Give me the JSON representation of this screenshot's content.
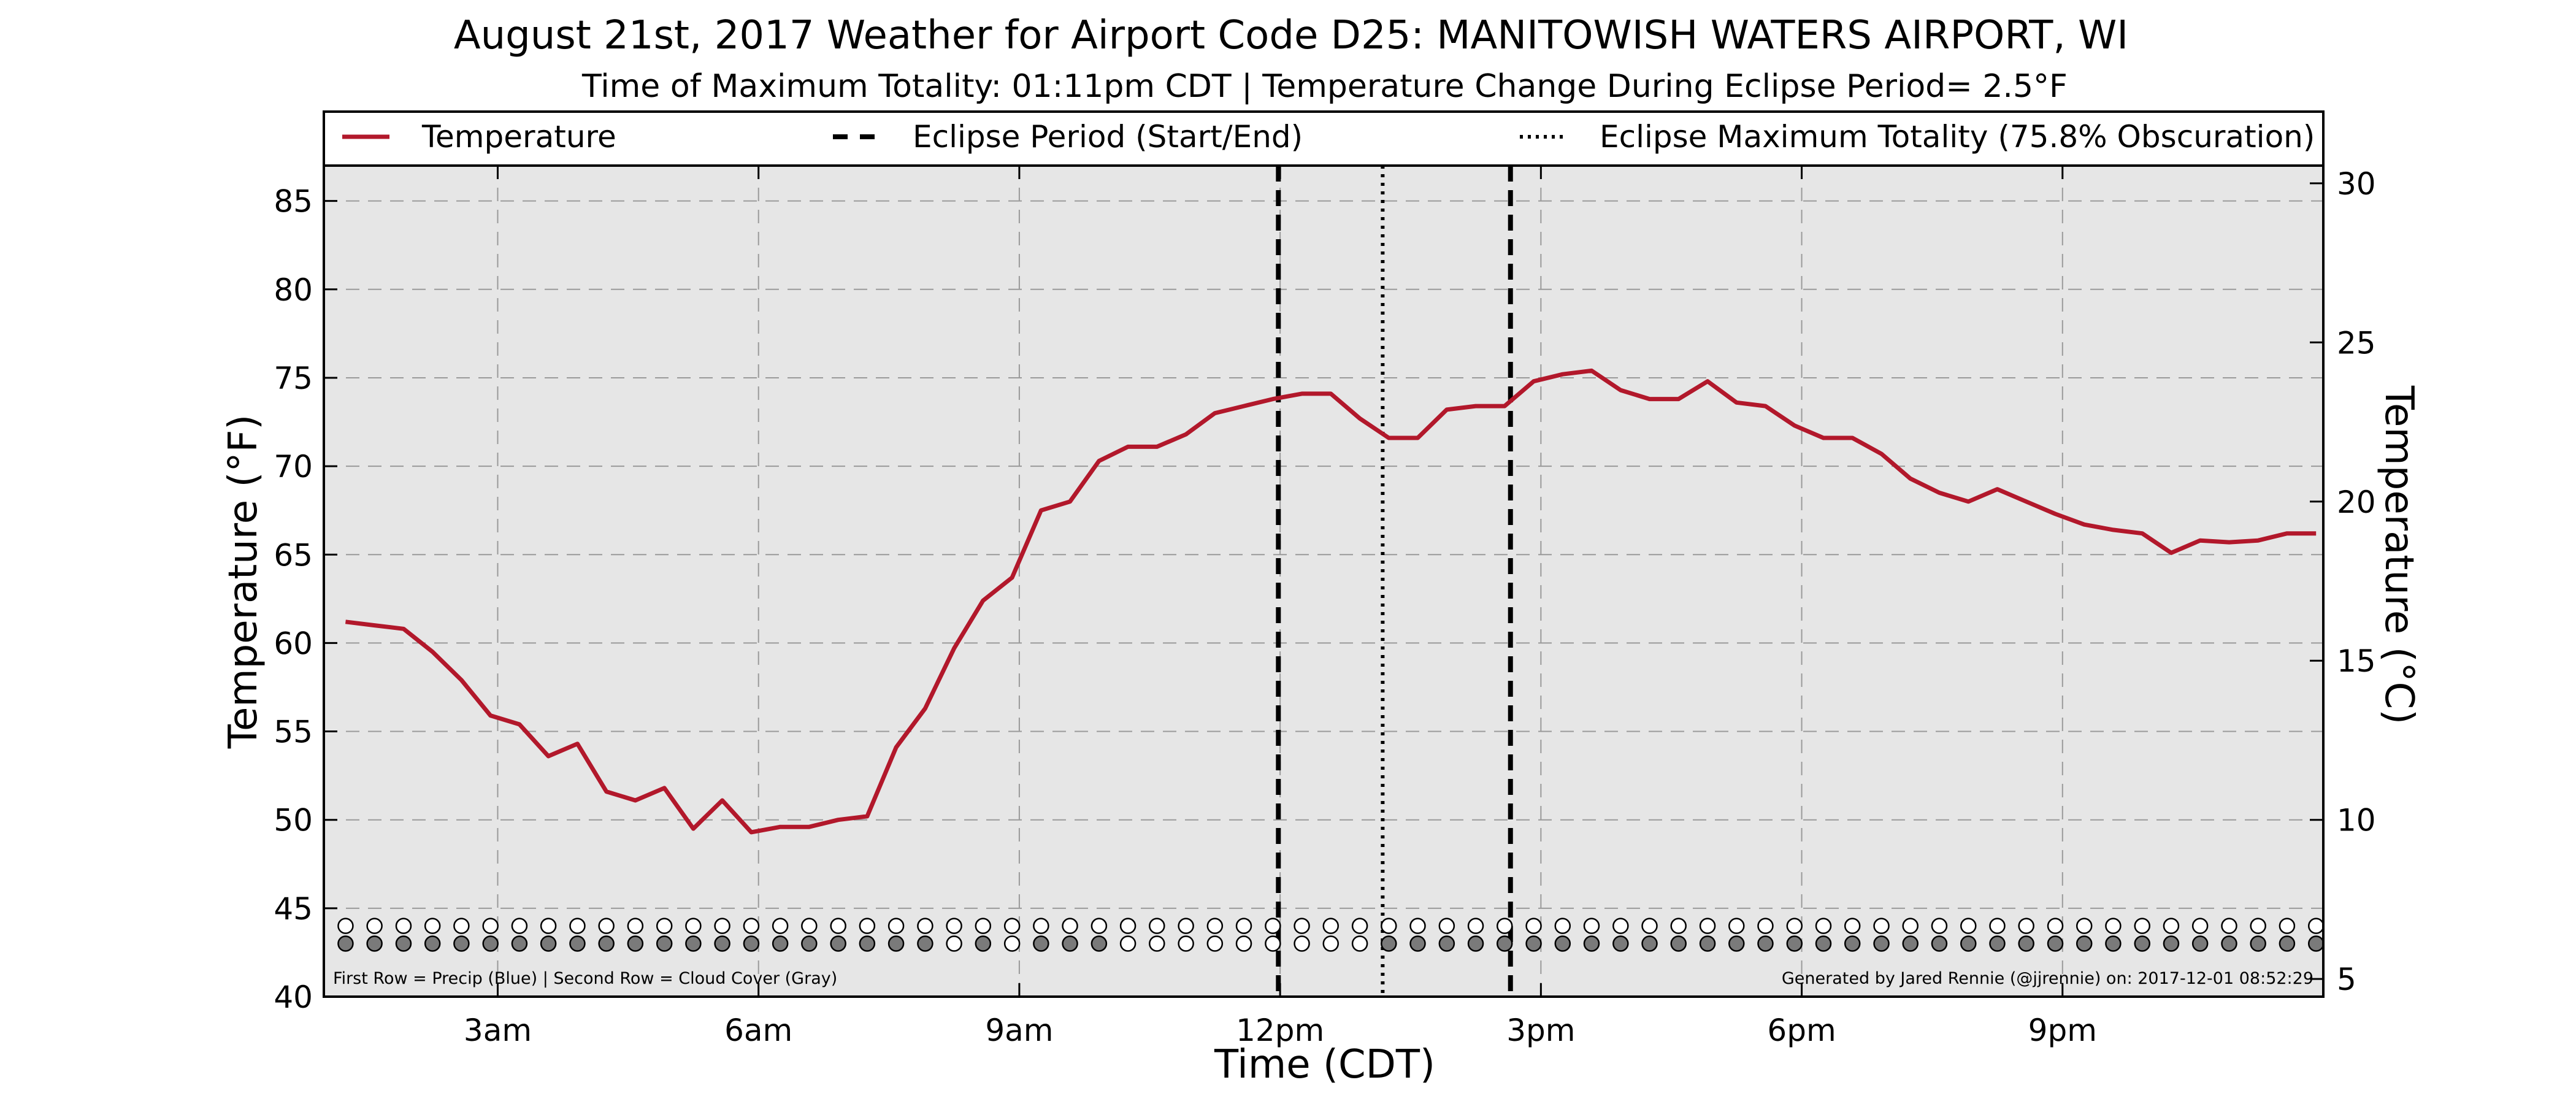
{
  "chart_data": {
    "type": "line",
    "title": "August 21st, 2017 Weather for Airport Code D25: MANITOWISH WATERS AIRPORT, WI",
    "subtitle": "Time of Maximum Totality: 01:11pm CDT | Temperature Change During Eclipse Period= 2.5°F",
    "xlabel": "Time (CDT)",
    "ylabel": "Temperature (°F)",
    "ylabel_right": "Temperature (°C)",
    "x_unit": "hours after midnight CDT",
    "xlim": [
      1,
      24
    ],
    "ylim": [
      40,
      87
    ],
    "ylim_right_c": [
      4.44,
      30.56
    ],
    "x_ticks": [
      {
        "x": 3,
        "label": "3am"
      },
      {
        "x": 6,
        "label": "6am"
      },
      {
        "x": 9,
        "label": "9am"
      },
      {
        "x": 12,
        "label": "12pm"
      },
      {
        "x": 15,
        "label": "3pm"
      },
      {
        "x": 18,
        "label": "6pm"
      },
      {
        "x": 21,
        "label": "9pm"
      }
    ],
    "y_ticks": [
      40,
      45,
      50,
      55,
      60,
      65,
      70,
      75,
      80,
      85
    ],
    "y_ticks_right": [
      5,
      10,
      15,
      20,
      25,
      30
    ],
    "grid": true,
    "legend_placement": "top",
    "legend": [
      {
        "label": "Temperature",
        "style": "solid",
        "color": "#b2182b"
      },
      {
        "label": "Eclipse Period (Start/End)",
        "style": "dashed",
        "color": "#000000"
      },
      {
        "label": "Eclipse Maximum Totality (75.8% Obscuration)",
        "style": "dotted",
        "color": "#000000"
      }
    ],
    "series": [
      {
        "name": "Temperature",
        "color": "#b2182b",
        "x": [
          1.25,
          1.583,
          1.917,
          2.25,
          2.583,
          2.917,
          3.25,
          3.583,
          3.917,
          4.25,
          4.583,
          4.917,
          5.25,
          5.583,
          5.917,
          6.25,
          6.583,
          6.917,
          7.25,
          7.583,
          7.917,
          8.25,
          8.583,
          8.917,
          9.25,
          9.583,
          9.917,
          10.25,
          10.583,
          10.917,
          11.25,
          11.583,
          11.917,
          12.25,
          12.583,
          12.917,
          13.25,
          13.583,
          13.917,
          14.25,
          14.583,
          14.917,
          15.25,
          15.583,
          15.917,
          16.25,
          16.583,
          16.917,
          17.25,
          17.583,
          17.917,
          18.25,
          18.583,
          18.917,
          19.25,
          19.583,
          19.917,
          20.25,
          20.583,
          20.917,
          21.25,
          21.583,
          21.917,
          22.25,
          22.583,
          22.917,
          23.25,
          23.583,
          23.917
        ],
        "values": [
          61.2,
          61.0,
          60.8,
          59.5,
          57.9,
          55.9,
          55.4,
          53.6,
          54.3,
          51.6,
          51.1,
          51.8,
          49.5,
          51.1,
          49.3,
          49.6,
          49.6,
          50.0,
          50.2,
          54.1,
          56.3,
          59.7,
          62.4,
          63.7,
          67.5,
          68.0,
          70.3,
          71.1,
          71.1,
          71.8,
          73.0,
          73.4,
          73.8,
          74.1,
          74.1,
          72.7,
          71.6,
          71.6,
          73.2,
          73.4,
          73.4,
          74.8,
          75.2,
          75.4,
          74.3,
          73.8,
          73.8,
          74.8,
          73.6,
          73.4,
          72.3,
          71.6,
          71.6,
          70.7,
          69.3,
          68.5,
          68.0,
          68.7,
          68.0,
          67.3,
          66.7,
          66.4,
          66.2,
          65.1,
          65.8,
          65.7,
          65.8,
          66.2,
          66.2
        ]
      }
    ],
    "eclipse": {
      "start": 11.98,
      "end": 14.65,
      "max": 13.18
    },
    "precip_row": [
      "none",
      "none",
      "none",
      "none",
      "none",
      "none",
      "none",
      "none",
      "none",
      "none",
      "none",
      "none",
      "none",
      "none",
      "none",
      "none",
      "none",
      "none",
      "none",
      "none",
      "none",
      "none",
      "none",
      "none",
      "none",
      "none",
      "none",
      "none",
      "none",
      "none",
      "none",
      "none",
      "none",
      "none",
      "none",
      "none",
      "none",
      "none",
      "none",
      "none",
      "none",
      "none",
      "none",
      "none",
      "none",
      "none",
      "none",
      "none",
      "none",
      "none",
      "none",
      "none",
      "none",
      "none",
      "none",
      "none",
      "none",
      "none",
      "none",
      "none",
      "none",
      "none",
      "none",
      "none",
      "none",
      "none",
      "none",
      "none",
      "none"
    ],
    "cloud_row": [
      "gray",
      "gray",
      "gray",
      "gray",
      "gray",
      "gray",
      "gray",
      "gray",
      "gray",
      "gray",
      "gray",
      "gray",
      "gray",
      "gray",
      "gray",
      "gray",
      "gray",
      "gray",
      "gray",
      "gray",
      "gray",
      "none",
      "gray",
      "none",
      "gray",
      "gray",
      "gray",
      "none",
      "none",
      "none",
      "none",
      "none",
      "none",
      "none",
      "none",
      "none",
      "gray",
      "gray",
      "gray",
      "gray",
      "gray",
      "gray",
      "gray",
      "gray",
      "gray",
      "gray",
      "gray",
      "gray",
      "gray",
      "gray",
      "gray",
      "gray",
      "gray",
      "gray",
      "gray",
      "gray",
      "gray",
      "gray",
      "gray",
      "gray",
      "gray",
      "gray",
      "gray",
      "gray",
      "gray",
      "gray",
      "gray",
      "gray",
      "gray"
    ],
    "footnote_left": "First Row = Precip (Blue) | Second Row = Cloud Cover (Gray)",
    "footnote_right": "Generated by Jared Rennie (@jjrennie) on: 2017-12-01 08:52:29",
    "colors": {
      "plot_bg": "#e6e6e6",
      "line": "#b2182b",
      "cloud_fill": "#7a7a7a",
      "empty_fill": "#ffffff",
      "grid": "#9a9a9a"
    }
  }
}
